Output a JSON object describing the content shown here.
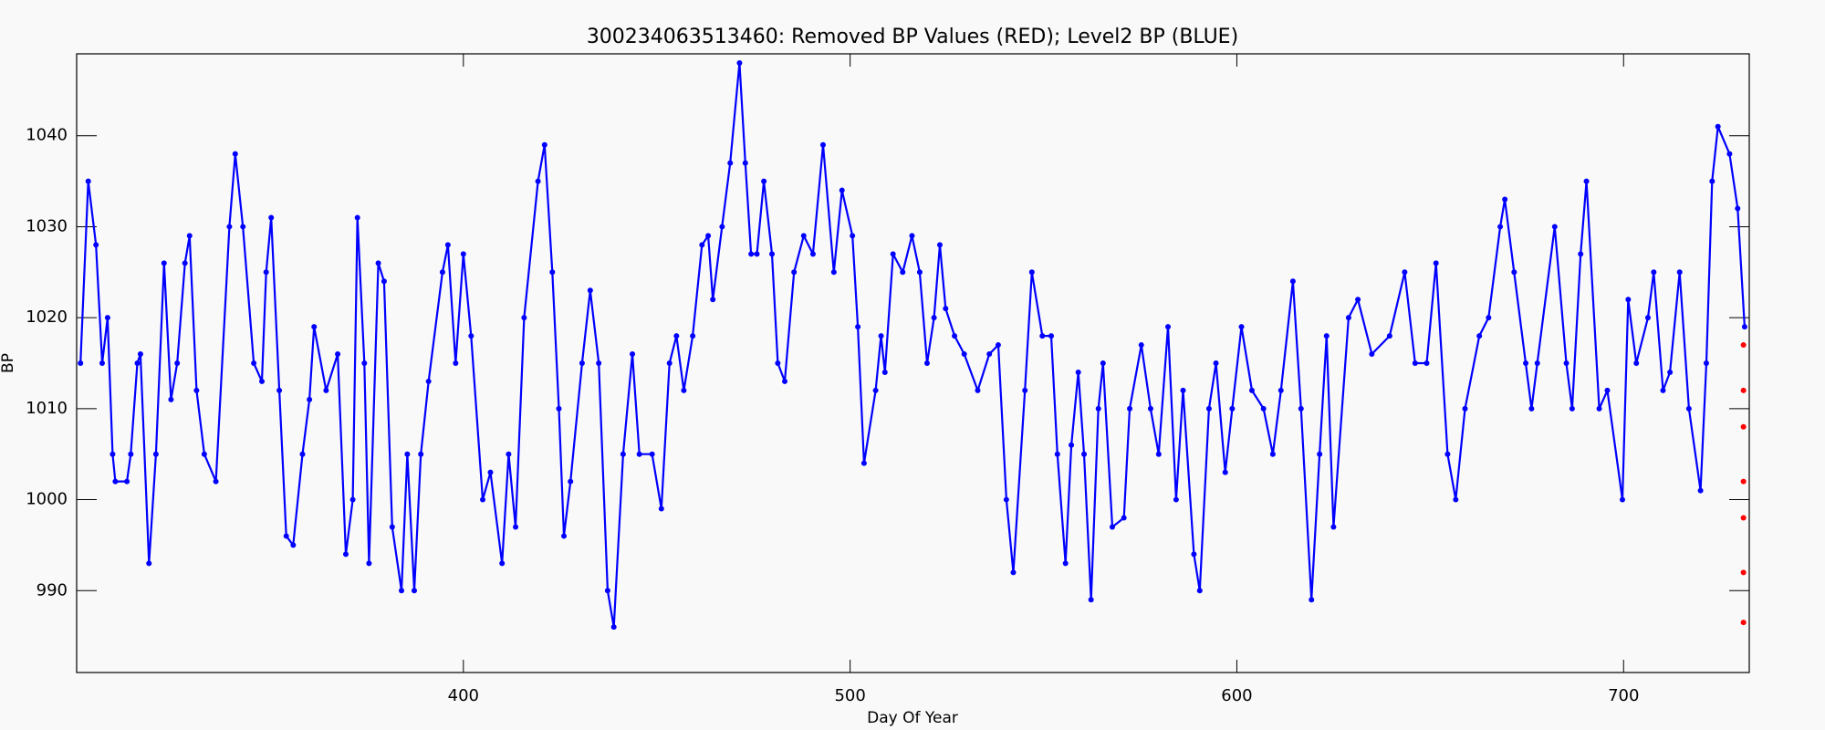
{
  "chart_data": {
    "type": "scatter",
    "title": "300234063513460: Removed BP Values (RED); Level2 BP (BLUE)",
    "x_label": "Day Of Year",
    "y_label": "BP",
    "xlim": [
      300,
      732.5
    ],
    "ylim": [
      981,
      1049
    ],
    "xticks": [
      400,
      500,
      600,
      700
    ],
    "yticks": [
      990,
      1000,
      1010,
      1020,
      1030,
      1040
    ],
    "grid": false,
    "series": [
      {
        "color": "#0000ff",
        "x": [
          301,
          303,
          305,
          306.6,
          308,
          309.3,
          310,
          313,
          314,
          315.7,
          316.5,
          318.7,
          320.5,
          322.6,
          324.4,
          326,
          328,
          329.2,
          331,
          333,
          336,
          339.5,
          341,
          343,
          345.8,
          347.9,
          349,
          350.3,
          352.4,
          354.2,
          356,
          358.4,
          360.2,
          361.4,
          364.5,
          367.5,
          369.6,
          371.4,
          372.6,
          374.4,
          375.6,
          378,
          379.5,
          381.6,
          384,
          385.5,
          387.3,
          389,
          391,
          394.6,
          396,
          398,
          400,
          402,
          405,
          407,
          410,
          411.7,
          413.5,
          415.7,
          419.3,
          421,
          423,
          424.7,
          426,
          427.7,
          430.7,
          432.8,
          435,
          437.3,
          438.9,
          441.3,
          443.7,
          445.5,
          448.8,
          451.2,
          453.3,
          455.1,
          457,
          459.3,
          461.7,
          463.3,
          464.5,
          466.9,
          469,
          471.4,
          472.9,
          474.4,
          475.9,
          477.7,
          479.8,
          481.3,
          483.1,
          485.5,
          488,
          490.4,
          493,
          495.8,
          497.9,
          500.6,
          502,
          503.6,
          506.6,
          508,
          509,
          511.1,
          513.6,
          516,
          518,
          519.9,
          521.7,
          523.2,
          524.7,
          527,
          529.5,
          533,
          536,
          538.3,
          540.4,
          542.2,
          545.2,
          547,
          549.7,
          552,
          553.6,
          555.7,
          557.2,
          559,
          560.5,
          562.3,
          564.2,
          565.4,
          567.8,
          570.8,
          572.3,
          575.3,
          577.7,
          579.8,
          582.2,
          584.3,
          586.1,
          588.9,
          590.4,
          592.8,
          594.6,
          597,
          598.8,
          601.2,
          603.9,
          606.9,
          609.3,
          611.4,
          614.5,
          616.6,
          619.3,
          621.4,
          623.2,
          625,
          628.9,
          631.3,
          634.9,
          639.5,
          643.4,
          646.1,
          649.1,
          651.5,
          654.5,
          656.6,
          659,
          662.7,
          665.1,
          668.1,
          669.3,
          671.7,
          674.7,
          676.2,
          677.7,
          682.2,
          685.2,
          686.7,
          688.9,
          690.4,
          693.7,
          695.8,
          699.7,
          701.2,
          703.3,
          706.3,
          707.8,
          710.2,
          712,
          714.5,
          716.9,
          719.9,
          721.4,
          722.9,
          724.4,
          727.4,
          729.5,
          731.3
        ],
        "values": [
          1015,
          1035,
          1028,
          1015,
          1020,
          1005,
          1002,
          1002,
          1005,
          1015,
          1016,
          993,
          1005,
          1026,
          1011,
          1015,
          1026,
          1029,
          1012,
          1005,
          1002,
          1030,
          1038,
          1030,
          1015,
          1013,
          1025,
          1031,
          1012,
          996,
          995,
          1005,
          1011,
          1019,
          1012,
          1016,
          994,
          1000,
          1031,
          1015,
          993,
          1026,
          1024,
          997,
          990,
          1005,
          990,
          1005,
          1013,
          1025,
          1028,
          1015,
          1027,
          1018,
          1000,
          1003,
          993,
          1005,
          997,
          1020,
          1035,
          1039,
          1025,
          1010,
          996,
          1002,
          1015,
          1023,
          1015,
          990,
          986,
          1005,
          1016,
          1005,
          1005,
          999,
          1015,
          1018,
          1012,
          1018,
          1028,
          1029,
          1022,
          1030,
          1037,
          1048,
          1037,
          1027,
          1027,
          1035,
          1027,
          1015,
          1013,
          1025,
          1029,
          1027,
          1039,
          1025,
          1034,
          1029,
          1019,
          1004,
          1012,
          1018,
          1014,
          1027,
          1025,
          1029,
          1025,
          1015,
          1020,
          1028,
          1021,
          1018,
          1016,
          1012,
          1016,
          1017,
          1000,
          992,
          1012,
          1025,
          1018,
          1018,
          1005,
          993,
          1006,
          1014,
          1005,
          989,
          1010,
          1015,
          997,
          998,
          1010,
          1017,
          1010,
          1005,
          1019,
          1000,
          1012,
          994,
          990,
          1010,
          1015,
          1003,
          1010,
          1019,
          1012,
          1010,
          1005,
          1012,
          1024,
          1010,
          989,
          1005,
          1018,
          997,
          1020,
          1022,
          1016,
          1018,
          1025,
          1015,
          1015,
          1026,
          1005,
          1000,
          1010,
          1018,
          1020,
          1030,
          1033,
          1025,
          1015,
          1010,
          1015,
          1030,
          1015,
          1010,
          1027,
          1035,
          1010,
          1012,
          1000,
          1022,
          1015,
          1020,
          1025,
          1012,
          1014,
          1025,
          1010,
          1001,
          1015,
          1035,
          1041,
          1038,
          1032,
          1019
        ]
      },
      {
        "color": "#ff0000",
        "x": [
          731,
          731,
          731,
          731,
          731,
          731,
          731
        ],
        "values": [
          1017,
          1012,
          1008,
          1002,
          998,
          992,
          986.5
        ]
      }
    ]
  }
}
